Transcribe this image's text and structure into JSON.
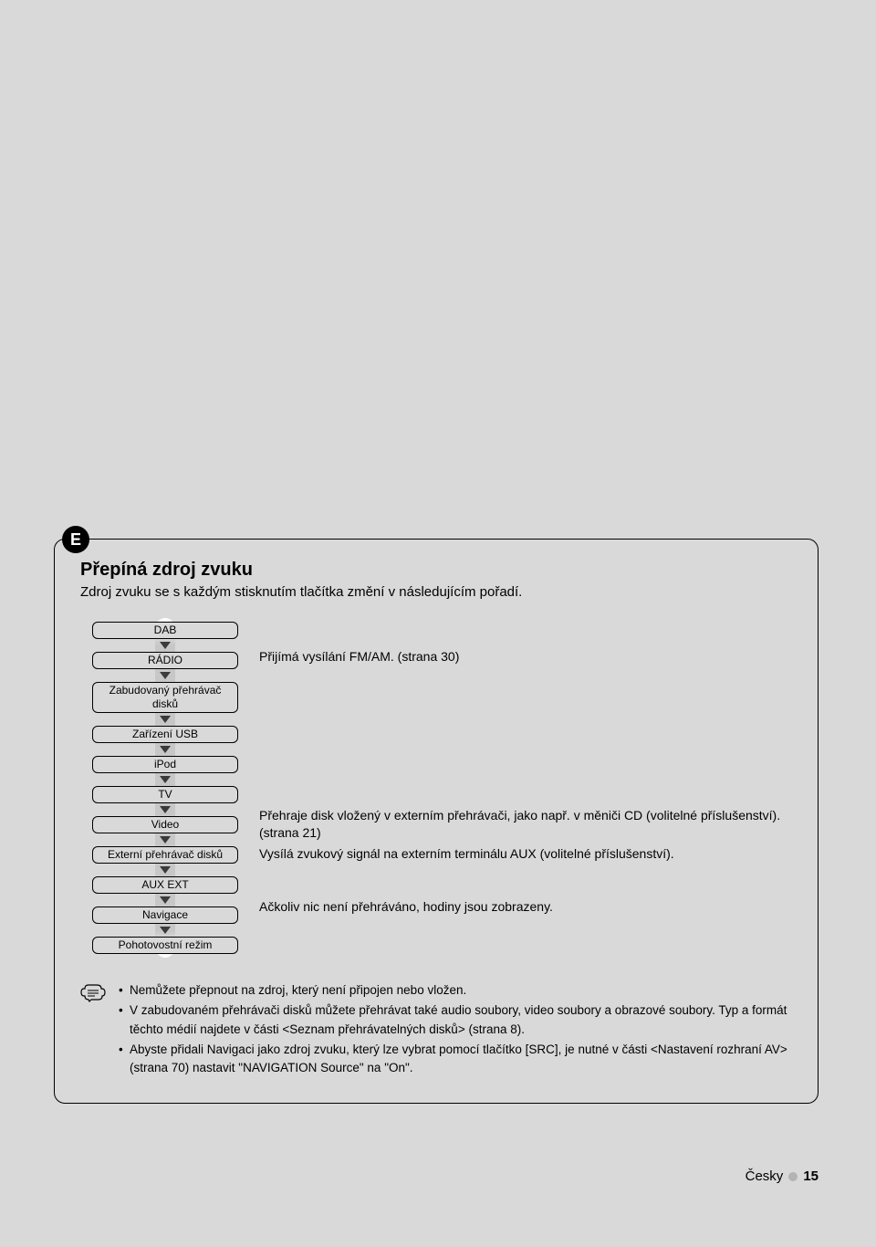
{
  "badge": "E",
  "title": "Přepíná zdroj zvuku",
  "subtitle": "Zdroj zvuku se s každým stisknutím tlačítka změní v následujícím pořadí.",
  "flow": {
    "items": [
      "DAB",
      "RÁDIO",
      "Zabudovaný přehrávač disků",
      "Zařízení USB",
      "iPod",
      "TV",
      "Video",
      "Externí přehrávač disků",
      "AUX EXT",
      "Navigace",
      "Pohotovostní režim"
    ],
    "descriptions": {
      "1": "Přijímá vysílání FM/AM. (strana 30)",
      "7": "Přehraje disk vložený v externím přehrávači, jako např. v měniči CD (volitelné příslušenství). (strana 21)",
      "8": "Vysílá zvukový signál na externím terminálu AUX (volitelné příslušenství).",
      "10": "Ačkoliv nic není přehráváno, hodiny jsou zobrazeny."
    }
  },
  "notes": [
    "Nemůžete přepnout na zdroj, který není připojen nebo vložen.",
    "V zabudovaném přehrávači disků můžete přehrávat také audio soubory, video soubory a obrazové soubory. Typ a formát těchto médií najdete v části <Seznam přehrávatelných disků>  (strana 8).",
    "Abyste přidali Navigaci jako zdroj zvuku, který lze vybrat pomocí tlačítko [SRC], je nutné v části <Nastavení rozhraní AV> (strana 70) nastavit \"NAVIGATION Source\" na \"On\"."
  ],
  "footer": {
    "lang": "Česky",
    "page": "15"
  },
  "colors": {
    "page_bg": "#d9d9d9",
    "text": "#000000",
    "arrow": "#3b3b3b",
    "pill_bg": "#c7c7c7",
    "footer_dot": "#b3b3b3"
  }
}
